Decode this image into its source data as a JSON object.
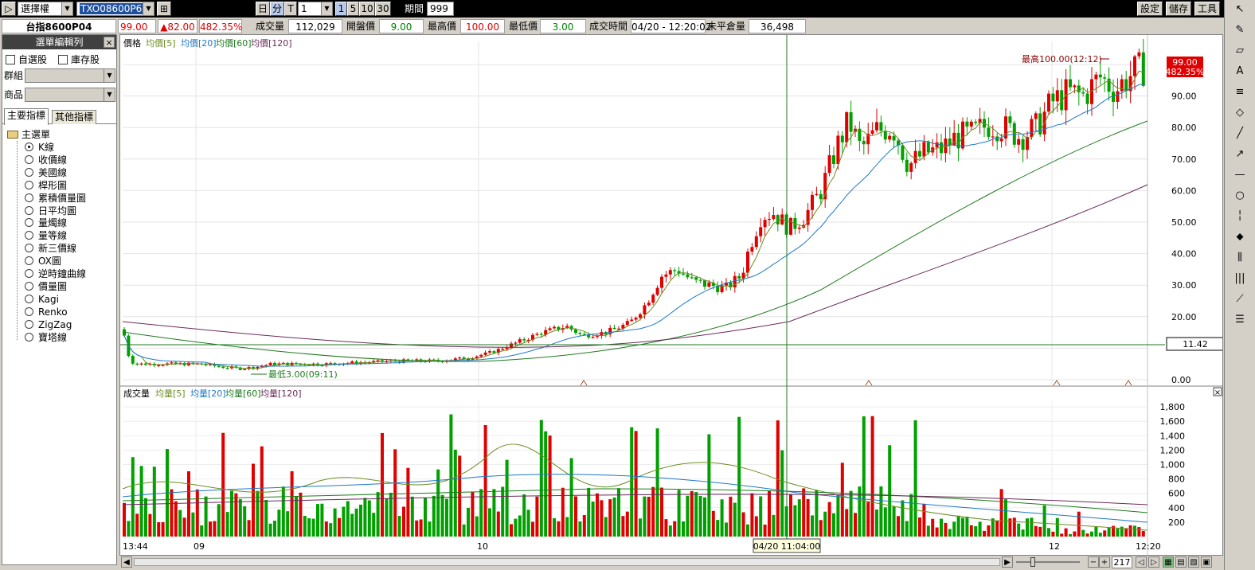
{
  "toolbar": {
    "play_label": "▷",
    "product_type": "選擇權",
    "symbol": "TXO08600P6",
    "btn_day": "日",
    "btn_min": "分",
    "btn_tick": "T",
    "interval": "1",
    "btn_1": "1",
    "btn_5": "5",
    "btn_10": "10",
    "btn_30": "30",
    "period_label": "期間",
    "period_value": "999",
    "settings_label": "設定",
    "save_label": "儲存",
    "tools_label": "工具"
  },
  "quote": {
    "name": "台指8600P04",
    "price": "99.00",
    "change": "▲82.00",
    "change_pct": "482.35%",
    "volume_label": "成交量",
    "volume": "112,029",
    "open_label": "開盤價",
    "open": "9.00",
    "high_label": "最高價",
    "high": "100.00",
    "low_label": "最低價",
    "low": "3.00",
    "time_label": "成交時間",
    "time": "04/20 - 12:20:02",
    "oi_label": "未平倉量",
    "oi": "36,498"
  },
  "left_panel": {
    "title": "選單編輯列",
    "close": "×",
    "watchlist_label": "自選股",
    "inventory_label": "庫存股",
    "group_label": "群組",
    "product_label": "商品",
    "tab_main": "主要指標",
    "tab_other": "其他指標",
    "tree_root": "主選單",
    "items": [
      "K線",
      "收價線",
      "美國線",
      "桿形圖",
      "累積價量圖",
      "日平均圖",
      "量燭線",
      "量等線",
      "新三價線",
      "OX圖",
      "逆時鐘曲線",
      "價量圖",
      "Kagi",
      "Renko",
      "ZigZag",
      "寶塔線"
    ],
    "selected_index": 0
  },
  "price_chart": {
    "legend": [
      {
        "text": "價格",
        "color": "#000000"
      },
      {
        "text": "均價[5]",
        "color": "#6b8e23"
      },
      {
        "text": "均價[20]",
        "color": "#1e78c8"
      },
      {
        "text": "均價[60]",
        "color": "#1e7a1e"
      },
      {
        "text": "均價[120]",
        "color": "#6b2a5a"
      }
    ],
    "y_ticks": [
      "90.00",
      "80.00",
      "70.00",
      "60.00",
      "50.00",
      "40.00",
      "30.00",
      "20.00",
      "0.00"
    ],
    "current_price": "99.00",
    "current_pct": "482.35%",
    "cursor_value": "11.42",
    "high_annotation": "最高100.00(12:12)",
    "low_annotation": "最低3.00(09:11)"
  },
  "volume_chart": {
    "legend": [
      {
        "text": "成交量",
        "color": "#000000"
      },
      {
        "text": "均量[5]",
        "color": "#6b8e23"
      },
      {
        "text": "均量[20]",
        "color": "#1e78c8"
      },
      {
        "text": "均量[60]",
        "color": "#1e7a1e"
      },
      {
        "text": "均量[120]",
        "color": "#6b2a5a"
      }
    ],
    "y_ticks": [
      "1,800",
      "1,600",
      "1,400",
      "1,200",
      "1,000",
      "800",
      "600",
      "400",
      "200"
    ],
    "close": "×"
  },
  "x_axis": {
    "labels": [
      "13:44",
      "09",
      "10",
      "12",
      "12:20"
    ],
    "cursor_time": "04/20 11:04:00"
  },
  "bottom": {
    "zoom_value": "217"
  },
  "colors": {
    "up": "#e00000",
    "down": "#00a000",
    "ma5": "#6b8e23",
    "ma20": "#1e78c8",
    "ma60": "#1e7a1e",
    "ma120": "#6b2a5a",
    "badge": "#e00000"
  }
}
